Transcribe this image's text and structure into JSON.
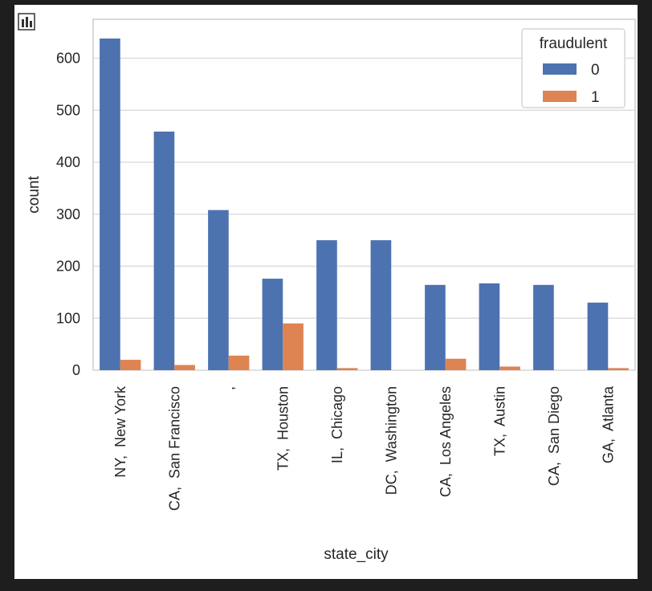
{
  "toolbar": {
    "icon": "bar-chart-icon"
  },
  "chart_data": {
    "type": "bar",
    "title": "",
    "xlabel": "state_city",
    "ylabel": "count",
    "ylim": [
      0,
      675
    ],
    "yticks": [
      0,
      100,
      200,
      300,
      400,
      500,
      600
    ],
    "grid": true,
    "legend": {
      "title": "fraudulent",
      "placement": "top-right"
    },
    "categories": [
      "NY,  New York",
      "CA,  San Francisco",
      ",",
      "TX,  Houston",
      "IL,  Chicago",
      "DC,  Washington",
      "CA,  Los Angeles",
      "TX,  Austin",
      "CA,  San Diego",
      "GA,  Atlanta"
    ],
    "series": [
      {
        "name": "0",
        "color": "#4c72b0",
        "values": [
          638,
          459,
          308,
          176,
          250,
          250,
          164,
          167,
          164,
          130
        ]
      },
      {
        "name": "1",
        "color": "#dd8452",
        "values": [
          20,
          10,
          28,
          90,
          4,
          0,
          22,
          7,
          0,
          4
        ]
      }
    ]
  }
}
